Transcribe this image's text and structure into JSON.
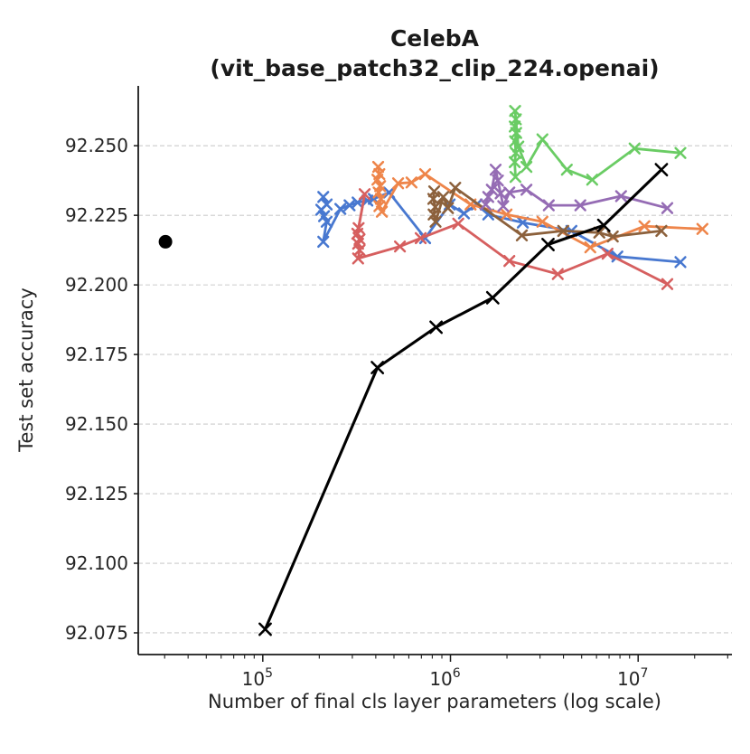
{
  "figure": {
    "background": "#ffffff",
    "text_color": "#262626",
    "grid_color": "#cccccc",
    "spine_color": "#1a1a1a"
  },
  "title": {
    "line1": "CelebA",
    "line2": "(vit_base_patch32_clip_224.openai)"
  },
  "chart_data": {
    "type": "line",
    "title": "CelebA (vit_base_patch32_clip_224.openai)",
    "xlabel": "Number of final cls layer parameters (log scale)",
    "ylabel": "Test set accuracy",
    "x_scale": "log",
    "xlim": [
      21700,
      31600000
    ],
    "ylim": [
      92.0672,
      92.2715
    ],
    "yticks": [
      92.075,
      92.1,
      92.125,
      92.15,
      92.175,
      92.2,
      92.225,
      92.25
    ],
    "xticks": [
      {
        "value": 100000,
        "base": "10",
        "exp": "5"
      },
      {
        "value": 1000000,
        "base": "10",
        "exp": "6"
      },
      {
        "value": 10000000,
        "base": "10",
        "exp": "7"
      }
    ],
    "grid": "horizontal-dashed",
    "legend_position": "none",
    "series": [
      {
        "name": "series-blue",
        "color": "#4878d0",
        "marker": "x",
        "line_width": 2.8,
        "points": [
          [
            210000,
            92.2316
          ],
          [
            219000,
            92.2289
          ],
          [
            205000,
            92.227
          ],
          [
            212000,
            92.2247
          ],
          [
            219000,
            92.2227
          ],
          [
            210000,
            92.2155
          ],
          [
            259000,
            92.2273
          ],
          [
            290000,
            92.2286
          ],
          [
            320000,
            92.2296
          ],
          [
            361000,
            92.2303
          ],
          [
            390000,
            92.2309
          ],
          [
            471000,
            92.2332
          ],
          [
            733000,
            92.2168
          ],
          [
            990000,
            92.2289
          ],
          [
            1180000,
            92.2257
          ],
          [
            1380000,
            92.2289
          ],
          [
            1590000,
            92.2253
          ],
          [
            2430000,
            92.2224
          ],
          [
            4410000,
            92.2194
          ],
          [
            7750000,
            92.2102
          ],
          [
            16800000,
            92.2082
          ]
        ]
      },
      {
        "name": "series-red",
        "color": "#d65f5f",
        "marker": "x",
        "line_width": 2.8,
        "points": [
          [
            324000,
            92.2204
          ],
          [
            349000,
            92.2326
          ],
          [
            319000,
            92.2184
          ],
          [
            328000,
            92.2164
          ],
          [
            322000,
            92.2148
          ],
          [
            328000,
            92.2125
          ],
          [
            322000,
            92.2095
          ],
          [
            538000,
            92.2138
          ],
          [
            694000,
            92.2168
          ],
          [
            1100000,
            92.222
          ],
          [
            2060000,
            92.2086
          ],
          [
            3730000,
            92.2039
          ],
          [
            6870000,
            92.2112
          ],
          [
            14300000,
            92.2003
          ]
        ]
      },
      {
        "name": "series-orange",
        "color": "#ee854a",
        "marker": "x",
        "line_width": 2.8,
        "points": [
          [
            412000,
            92.2424
          ],
          [
            418000,
            92.2398
          ],
          [
            408000,
            92.2378
          ],
          [
            422000,
            92.2355
          ],
          [
            414000,
            92.2332
          ],
          [
            426000,
            92.2309
          ],
          [
            418000,
            92.2283
          ],
          [
            431000,
            92.2263
          ],
          [
            526000,
            92.2365
          ],
          [
            620000,
            92.2368
          ],
          [
            733000,
            92.2398
          ],
          [
            1280000,
            92.2289
          ],
          [
            1990000,
            92.2253
          ],
          [
            3090000,
            92.2227
          ],
          [
            5560000,
            92.2135
          ],
          [
            10800000,
            92.2211
          ],
          [
            22000000,
            92.2201
          ]
        ]
      },
      {
        "name": "series-brown",
        "color": "#8c613c",
        "marker": "x",
        "line_width": 2.8,
        "points": [
          [
            819000,
            92.2336
          ],
          [
            810000,
            92.2309
          ],
          [
            830000,
            92.228
          ],
          [
            813000,
            92.2253
          ],
          [
            833000,
            92.2227
          ],
          [
            915000,
            92.2316
          ],
          [
            970000,
            92.2276
          ],
          [
            1060000,
            92.2349
          ],
          [
            2400000,
            92.2178
          ],
          [
            3990000,
            92.2194
          ],
          [
            6210000,
            92.2188
          ],
          [
            7330000,
            92.2174
          ],
          [
            13300000,
            92.2194
          ]
        ]
      },
      {
        "name": "series-purple",
        "color": "#956cb4",
        "marker": "x",
        "line_width": 2.8,
        "points": [
          [
            1540000,
            92.2289
          ],
          [
            1590000,
            92.2316
          ],
          [
            1660000,
            92.2342
          ],
          [
            1740000,
            92.2414
          ],
          [
            1790000,
            92.2375
          ],
          [
            1850000,
            92.2329
          ],
          [
            1910000,
            92.2283
          ],
          [
            2060000,
            92.2332
          ],
          [
            2540000,
            92.2342
          ],
          [
            3340000,
            92.2286
          ],
          [
            4920000,
            92.2286
          ],
          [
            8110000,
            92.2319
          ],
          [
            14300000,
            92.2276
          ]
        ]
      },
      {
        "name": "series-green",
        "color": "#6acc64",
        "marker": "x",
        "line_width": 2.8,
        "points": [
          [
            2220000,
            92.2388
          ],
          [
            2200000,
            92.2441
          ],
          [
            2230000,
            92.2474
          ],
          [
            2210000,
            92.2516
          ],
          [
            2240000,
            92.2546
          ],
          [
            2200000,
            92.2569
          ],
          [
            2230000,
            92.2595
          ],
          [
            2210000,
            92.2625
          ],
          [
            2300000,
            92.2497
          ],
          [
            2540000,
            92.2424
          ],
          [
            3090000,
            92.2523
          ],
          [
            4170000,
            92.2414
          ],
          [
            5690000,
            92.2378
          ],
          [
            9570000,
            92.249
          ],
          [
            16800000,
            92.2474
          ]
        ]
      },
      {
        "name": "series-black-sweep",
        "color": "#000000",
        "marker": "x",
        "line_width": 3.1,
        "points": [
          [
            103000,
            92.0763
          ],
          [
            408000,
            92.1703
          ],
          [
            838000,
            92.1848
          ],
          [
            1680000,
            92.1954
          ],
          [
            3310000,
            92.2145
          ],
          [
            6560000,
            92.2214
          ],
          [
            13300000,
            92.2414
          ]
        ]
      },
      {
        "name": "baseline-dot",
        "color": "#000000",
        "marker": "circle",
        "line_width": 0,
        "points": [
          [
            30300,
            92.2155
          ]
        ]
      }
    ]
  }
}
